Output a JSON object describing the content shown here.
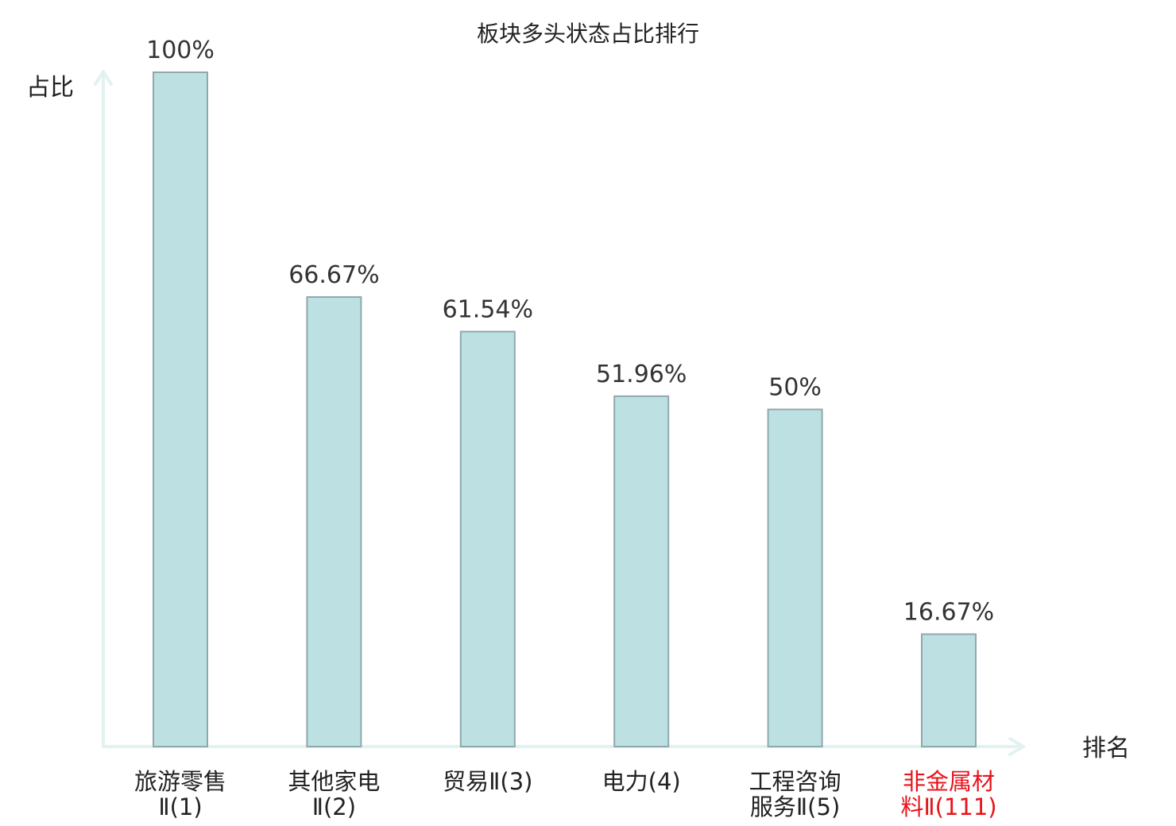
{
  "chart_data": {
    "type": "bar",
    "title": "板块多头状态占比排行",
    "xlabel": "排名",
    "ylabel": "占比",
    "ylim": [
      0,
      100
    ],
    "unit": "%",
    "grid": false,
    "legend": "none",
    "categories": [
      {
        "line1": "旅游零售",
        "line2": "Ⅱ(1)"
      },
      {
        "line1": "其他家电",
        "line2": "Ⅱ(2)"
      },
      {
        "line1": "贸易Ⅱ(3)",
        "line2": ""
      },
      {
        "line1": "电力(4)",
        "line2": ""
      },
      {
        "line1": "工程咨询",
        "line2": "服务Ⅱ(5)"
      },
      {
        "line1": "非金属材",
        "line2": "料Ⅱ(111)"
      }
    ],
    "values": [
      100,
      66.67,
      61.54,
      51.96,
      50,
      16.67
    ],
    "value_labels": [
      "100%",
      "66.67%",
      "61.54%",
      "51.96%",
      "50%",
      "16.67%"
    ],
    "highlight_index": 5,
    "colors": {
      "bar_fill": "#bde0e3",
      "bar_stroke": "#8fa9ac",
      "axis": "#e2f2f0",
      "label": "#222222",
      "value_label": "#333333",
      "highlight": "#e8141c"
    }
  }
}
